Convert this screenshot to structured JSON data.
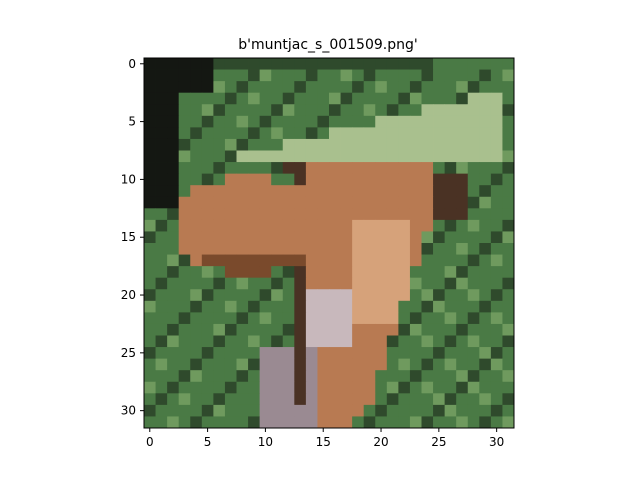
{
  "chart_data": {
    "type": "heatmap",
    "title": "b'muntjac_s_001509.png'",
    "xlabel": "",
    "ylabel": "",
    "grid": false,
    "image_size": [
      32,
      32
    ],
    "xlim": [
      -0.5,
      31.5
    ],
    "ylim": [
      31.5,
      -0.5
    ],
    "x_ticks": [
      0,
      5,
      10,
      15,
      20,
      25,
      30
    ],
    "y_ticks": [
      0,
      5,
      10,
      15,
      20,
      25,
      30
    ],
    "x_tick_labels": [
      "0",
      "5",
      "10",
      "15",
      "20",
      "25",
      "30"
    ],
    "y_tick_labels": [
      "0",
      "5",
      "10",
      "15",
      "20",
      "25",
      "30"
    ],
    "palette": {
      "dark_bg": "#141712",
      "grass_dark": "#2f4a2c",
      "grass": "#4a7a45",
      "grass_light": "#6f9a5e",
      "pale_green": "#a9c08e",
      "deer_light": "#d6a27a",
      "deer_mid": "#b87a52",
      "deer_dark": "#7a4a2c",
      "shadow_brown": "#4a3224",
      "leg_grey": "#9a8a92",
      "leg_light": "#c8b8bc"
    }
  }
}
